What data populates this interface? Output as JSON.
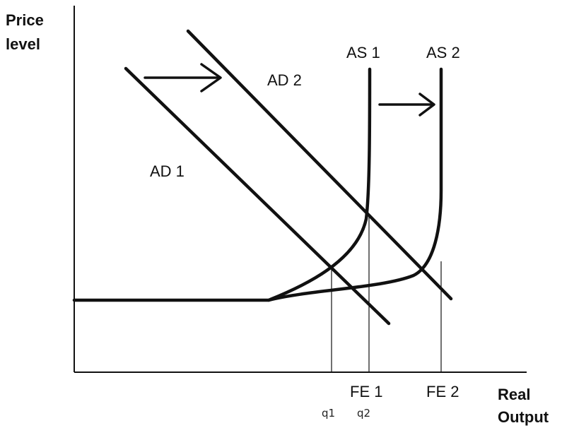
{
  "axes": {
    "y_label_line1": "Price",
    "y_label_line2": "level",
    "x_label_line1": "Real",
    "x_label_line2": "Output"
  },
  "curves": {
    "ad1": "AD 1",
    "ad2": "AD 2",
    "as1": "AS 1",
    "as2": "AS 2"
  },
  "markers": {
    "fe1": "FE 1",
    "fe2": "FE 2",
    "q1": "q1",
    "q2": "q2"
  },
  "colors": {
    "ink": "#111111",
    "background": "#ffffff"
  }
}
